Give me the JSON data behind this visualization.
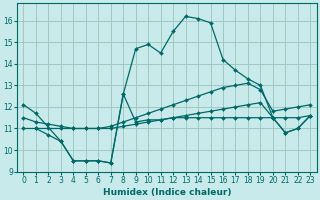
{
  "xlabel": "Humidex (Indice chaleur)",
  "xlim": [
    -0.5,
    23.5
  ],
  "ylim": [
    9,
    16.8
  ],
  "yticks": [
    9,
    10,
    11,
    12,
    13,
    14,
    15,
    16
  ],
  "xticks": [
    0,
    1,
    2,
    3,
    4,
    5,
    6,
    7,
    8,
    9,
    10,
    11,
    12,
    13,
    14,
    15,
    16,
    17,
    18,
    19,
    20,
    21,
    22,
    23
  ],
  "bg_color": "#c8eaea",
  "grid_color": "#a0c8c0",
  "line_color": "#006868",
  "lines": [
    {
      "x": [
        0,
        1,
        3,
        4,
        5,
        6,
        7,
        8,
        9,
        10,
        11,
        12,
        13,
        14,
        15,
        16,
        17,
        18,
        19,
        20,
        21,
        22,
        23
      ],
      "y": [
        12.1,
        11.7,
        10.4,
        9.5,
        9.5,
        9.5,
        9.4,
        12.6,
        14.7,
        14.9,
        14.5,
        15.5,
        16.2,
        16.1,
        15.9,
        14.2,
        13.7,
        13.3,
        13.0,
        11.5,
        10.8,
        11.0,
        11.6
      ]
    },
    {
      "x": [
        0,
        1,
        2,
        3,
        4,
        5,
        6,
        7,
        8,
        9,
        10,
        11,
        12,
        13,
        14,
        15,
        16,
        17,
        18,
        19,
        20,
        21,
        22,
        23
      ],
      "y": [
        11.0,
        11.0,
        11.0,
        11.0,
        11.0,
        11.0,
        11.0,
        11.0,
        11.1,
        11.2,
        11.3,
        11.4,
        11.5,
        11.6,
        11.7,
        11.8,
        11.9,
        12.0,
        12.1,
        12.2,
        11.5,
        11.5,
        11.5,
        11.6
      ]
    },
    {
      "x": [
        0,
        1,
        2,
        3,
        4,
        5,
        6,
        7,
        8,
        9,
        10,
        11,
        12,
        13,
        14,
        15,
        16,
        17,
        18,
        19,
        20,
        21,
        22,
        23
      ],
      "y": [
        11.5,
        11.3,
        11.2,
        11.1,
        11.0,
        11.0,
        11.0,
        11.1,
        11.3,
        11.5,
        11.7,
        11.9,
        12.1,
        12.3,
        12.5,
        12.7,
        12.9,
        13.0,
        13.1,
        12.8,
        11.8,
        11.9,
        12.0,
        12.1
      ]
    },
    {
      "x": [
        1,
        2,
        3,
        4,
        5,
        6,
        7,
        8,
        9,
        10,
        11,
        12,
        13,
        14,
        15,
        16,
        17,
        18,
        19,
        20,
        21,
        22,
        23
      ],
      "y": [
        11.0,
        10.7,
        10.4,
        9.5,
        9.5,
        9.5,
        9.4,
        12.6,
        11.3,
        11.4,
        11.4,
        11.5,
        11.5,
        11.5,
        11.5,
        11.5,
        11.5,
        11.5,
        11.5,
        11.5,
        10.8,
        11.0,
        11.6
      ]
    }
  ]
}
